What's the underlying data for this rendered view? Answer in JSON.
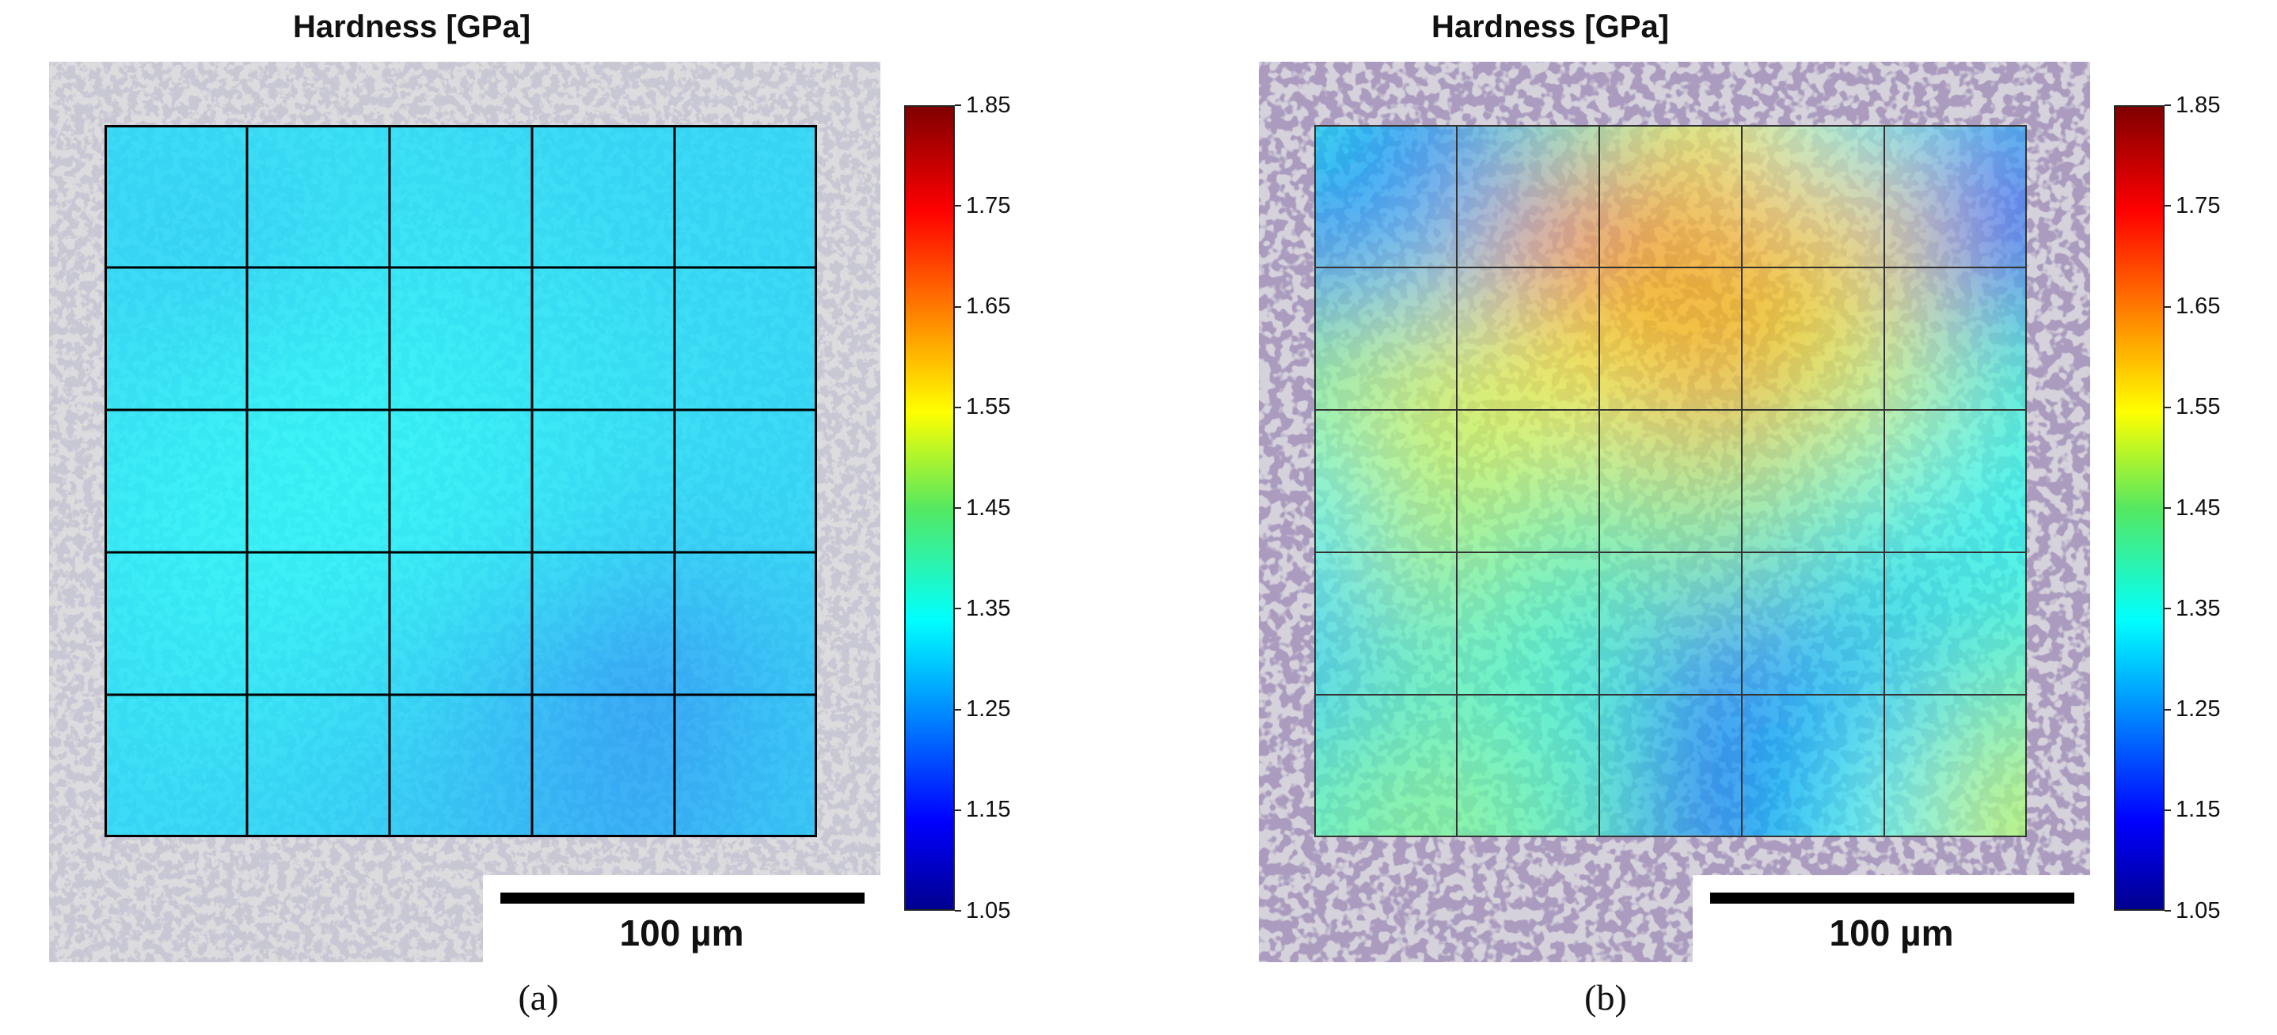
{
  "chart_data": [
    {
      "type": "heatmap",
      "panel_label": "(a)",
      "title": "Hardness [GPa]",
      "colorbar": {
        "min": 1.05,
        "max": 1.85,
        "ticks": [
          "1.85",
          "1.75",
          "1.65",
          "1.55",
          "1.45",
          "1.35",
          "1.25",
          "1.15",
          "1.05"
        ],
        "colormap": "jet"
      },
      "grid": {
        "rows": 5,
        "cols": 5
      },
      "scale_bar_label": "100 µm",
      "values": [
        [
          1.32,
          1.33,
          1.33,
          1.32,
          1.32,
          1.32
        ],
        [
          1.32,
          1.31,
          1.33,
          1.33,
          1.32,
          1.32
        ],
        [
          1.33,
          1.34,
          1.35,
          1.34,
          1.33,
          1.32
        ],
        [
          1.34,
          1.35,
          1.35,
          1.34,
          1.32,
          1.32
        ],
        [
          1.33,
          1.34,
          1.33,
          1.3,
          1.25,
          1.3
        ],
        [
          1.32,
          1.32,
          1.31,
          1.29,
          1.27,
          1.3
        ]
      ]
    },
    {
      "type": "heatmap",
      "panel_label": "(b)",
      "title": "Hardness [GPa]",
      "colorbar": {
        "min": 1.05,
        "max": 1.85,
        "ticks": [
          "1.85",
          "1.75",
          "1.65",
          "1.55",
          "1.45",
          "1.35",
          "1.25",
          "1.15",
          "1.05"
        ],
        "colormap": "jet"
      },
      "grid": {
        "rows": 5,
        "cols": 5
      },
      "scale_bar_label": "100 µm",
      "values": [
        [
          1.35,
          1.22,
          1.4,
          1.55,
          1.35,
          1.28
        ],
        [
          1.22,
          1.3,
          1.68,
          1.62,
          1.58,
          1.18
        ],
        [
          1.45,
          1.52,
          1.55,
          1.62,
          1.52,
          1.38
        ],
        [
          1.35,
          1.48,
          1.42,
          1.45,
          1.38,
          1.35
        ],
        [
          1.3,
          1.4,
          1.38,
          1.25,
          1.3,
          1.4
        ],
        [
          1.4,
          1.45,
          1.4,
          1.2,
          1.35,
          1.5
        ]
      ]
    }
  ]
}
